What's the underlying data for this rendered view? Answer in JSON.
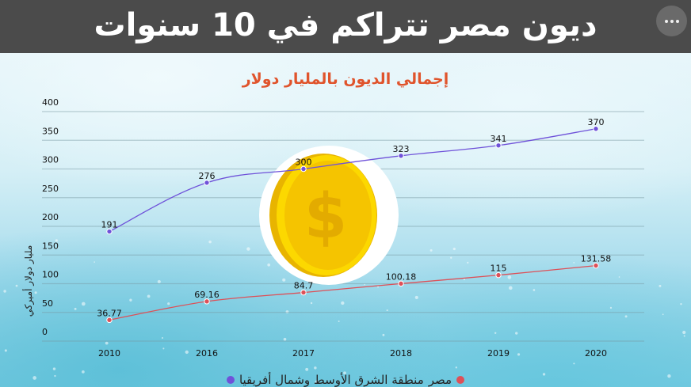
{
  "header": {
    "title": "ديون مصر تتراكم في 10 سنوات",
    "more_icon": "ellipsis-icon"
  },
  "colors": {
    "header_bg": "#4b4b4b",
    "title_accent": "#e0542c",
    "series_mena": "#6f52d9",
    "series_egypt": "#dd5058",
    "coin_gold": "#f6c700"
  },
  "decoration": {
    "coin_icon": "dollar-coin-icon",
    "coin_symbol": "$"
  },
  "chart_data": {
    "type": "line",
    "title": "إجمالي الديون بالمليار دولار",
    "xlabel": "",
    "ylabel": "مليار دولار أميركي",
    "categories": [
      "2010",
      "2016",
      "2017",
      "2018",
      "2019",
      "2020"
    ],
    "series": [
      {
        "name": "منطقة الشرق الأوسط وشمال أفريقيا",
        "color": "#6f52d9",
        "values": [
          191,
          276,
          300,
          323,
          341,
          370
        ],
        "labels": [
          "191",
          "276",
          "300",
          "323",
          "341",
          "370"
        ]
      },
      {
        "name": "مصر",
        "color": "#dd5058",
        "values": [
          36.77,
          69.16,
          84.7,
          100.18,
          115,
          131.58
        ],
        "labels": [
          "36.77",
          "69.16",
          "84.7",
          "100.18",
          "115",
          "131.58"
        ]
      }
    ],
    "yticks": [
      "0",
      "50",
      "100",
      "150",
      "200",
      "250",
      "300",
      "350",
      "400"
    ],
    "ylim": [
      0,
      400
    ],
    "grid": true,
    "legend_position": "bottom"
  },
  "legend": {
    "items": [
      {
        "label": "مصر",
        "color": "#dd5058"
      },
      {
        "label": "منطقة الشرق الأوسط وشمال أفريقيا",
        "color": "#6f52d9"
      }
    ]
  }
}
